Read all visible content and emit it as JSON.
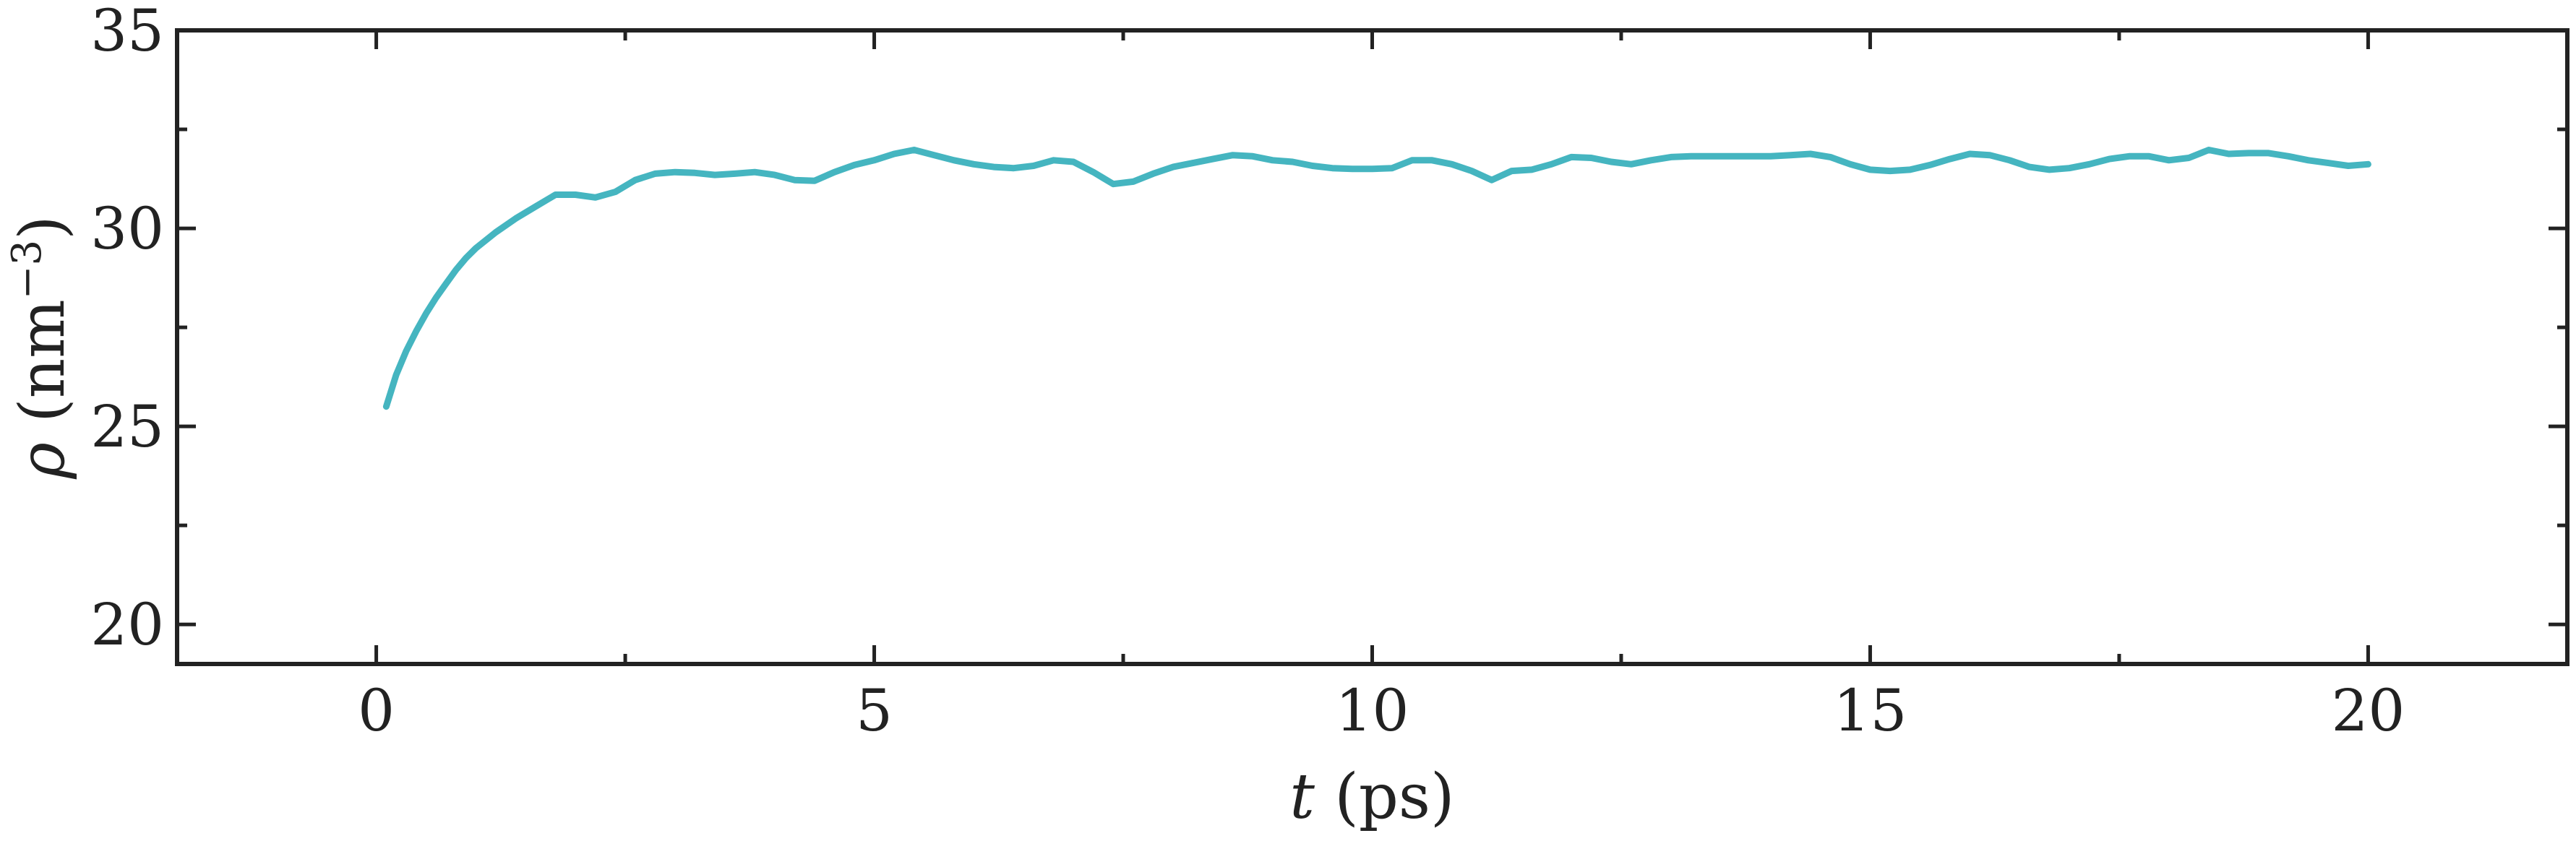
{
  "chart_data": {
    "type": "line",
    "title": "",
    "xlabel_var": "t",
    "xlabel_unit": " (ps)",
    "ylabel_var": "ρ",
    "ylabel_unit_open": " (nm",
    "ylabel_unit_exp": "−3",
    "ylabel_unit_close": ")",
    "xlim": [
      -2,
      22
    ],
    "ylim": [
      19,
      35
    ],
    "xticks": [
      0,
      5,
      10,
      15,
      20
    ],
    "xtick_labels": [
      "0",
      "5",
      "10",
      "15",
      "20"
    ],
    "xminor": [
      2.5,
      7.5,
      12.5,
      17.5
    ],
    "yticks": [
      20,
      25,
      30,
      35
    ],
    "ytick_labels": [
      "20",
      "25",
      "30",
      "35"
    ],
    "yminor": [
      22.5,
      27.5,
      32.5
    ],
    "grid": false,
    "series": [
      {
        "color": "#45b5c0",
        "x": [
          0.1,
          0.2,
          0.3,
          0.4,
          0.5,
          0.6,
          0.7,
          0.8,
          0.9,
          1.0,
          1.2,
          1.4,
          1.6,
          1.8,
          2.0,
          2.2,
          2.4,
          2.6,
          2.8,
          3.0,
          3.2,
          3.4,
          3.6,
          3.8,
          4.0,
          4.2,
          4.4,
          4.6,
          4.8,
          5.0,
          5.2,
          5.4,
          5.6,
          5.8,
          6.0,
          6.2,
          6.4,
          6.6,
          6.8,
          7.0,
          7.2,
          7.4,
          7.6,
          7.8,
          8.0,
          8.2,
          8.4,
          8.6,
          8.8,
          9.0,
          9.2,
          9.4,
          9.6,
          9.8,
          10.0,
          10.2,
          10.4,
          10.6,
          10.8,
          11.0,
          11.2,
          11.4,
          11.6,
          11.8,
          12.0,
          12.2,
          12.4,
          12.6,
          12.8,
          13.0,
          13.2,
          13.4,
          13.6,
          13.8,
          14.0,
          14.2,
          14.4,
          14.6,
          14.8,
          15.0,
          15.2,
          15.4,
          15.6,
          15.8,
          16.0,
          16.2,
          16.4,
          16.6,
          16.8,
          17.0,
          17.2,
          17.4,
          17.6,
          17.8,
          18.0,
          18.2,
          18.4,
          18.6,
          18.8,
          19.0,
          19.2,
          19.4,
          19.6,
          19.8,
          20.0
        ],
        "y": [
          25.5,
          26.3,
          26.9,
          27.4,
          27.85,
          28.25,
          28.6,
          28.95,
          29.25,
          29.5,
          29.9,
          30.25,
          30.55,
          30.85,
          30.85,
          30.78,
          30.92,
          31.22,
          31.38,
          31.42,
          31.4,
          31.35,
          31.38,
          31.42,
          31.35,
          31.22,
          31.2,
          31.42,
          31.6,
          31.72,
          31.88,
          31.98,
          31.85,
          31.72,
          31.62,
          31.55,
          31.52,
          31.58,
          31.72,
          31.68,
          31.42,
          31.12,
          31.18,
          31.38,
          31.55,
          31.65,
          31.75,
          31.85,
          31.82,
          31.72,
          31.68,
          31.58,
          31.52,
          31.5,
          31.5,
          31.52,
          31.72,
          31.72,
          31.62,
          31.45,
          31.22,
          31.45,
          31.48,
          31.62,
          31.8,
          31.78,
          31.68,
          31.62,
          31.72,
          31.8,
          31.82,
          31.82,
          31.82,
          31.82,
          31.82,
          31.85,
          31.88,
          31.8,
          31.62,
          31.48,
          31.45,
          31.48,
          31.6,
          31.75,
          31.88,
          31.85,
          31.72,
          31.55,
          31.48,
          31.52,
          31.62,
          31.75,
          31.82,
          31.82,
          31.72,
          31.78,
          31.98,
          31.88,
          31.9,
          31.9,
          31.82,
          31.72,
          31.65,
          31.58,
          31.62
        ]
      }
    ]
  }
}
